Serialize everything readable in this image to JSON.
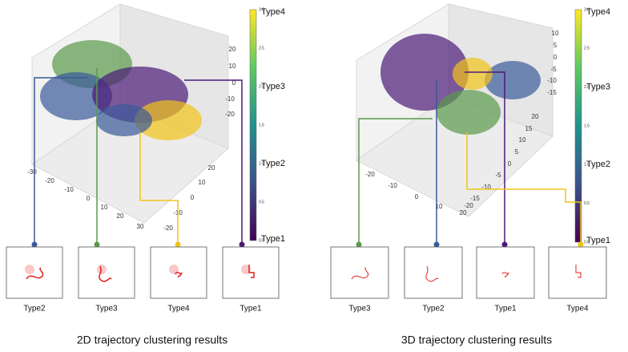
{
  "panels": [
    {
      "caption": "2D trajectory clustering results",
      "colorbar_ticks": [
        "0.0",
        "0.5",
        "1.0",
        "1.5",
        "2.0",
        "2.5",
        "3.0"
      ],
      "colorbar_labels": [
        "Type1",
        "Type2",
        "Type3",
        "Type4"
      ],
      "z_ticks": [
        20,
        10,
        0,
        -10,
        -20
      ],
      "x_ticks": [
        -30,
        -20,
        -10,
        0,
        10,
        20,
        30
      ],
      "y_ticks": [
        -20,
        -10,
        0,
        10,
        20
      ],
      "thumbnails": [
        "Type2",
        "Type3",
        "Type4",
        "Type1"
      ]
    },
    {
      "caption": "3D trajectory clustering results",
      "colorbar_ticks": [
        "0.0",
        "0.5",
        "1.0",
        "1.5",
        "2.0",
        "2.5",
        "3.0"
      ],
      "colorbar_labels": [
        "Type1",
        "Type2",
        "Type3",
        "Type4"
      ],
      "z_ticks": [
        10,
        5,
        0,
        -5,
        -10,
        -15
      ],
      "x_ticks": [
        -20,
        -10,
        0,
        10,
        20
      ],
      "y_ticks": [
        -20,
        -15,
        -10,
        -5,
        0,
        5,
        10,
        15,
        20
      ],
      "thumbnails": [
        "Type3",
        "Type2",
        "Type1",
        "Type4"
      ]
    }
  ]
}
